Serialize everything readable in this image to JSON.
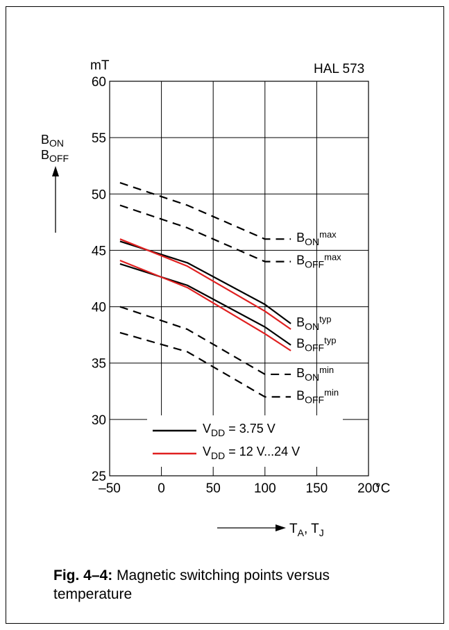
{
  "chart_data": {
    "type": "line",
    "title": "",
    "device_label": "HAL 573",
    "y_unit": "mT",
    "ylim": [
      25,
      60
    ],
    "yticks": [
      "25",
      "30",
      "35",
      "40",
      "45",
      "50",
      "55",
      "60"
    ],
    "xlim": [
      -50,
      200
    ],
    "xticks": [
      "–50",
      "0",
      "50",
      "100",
      "150",
      "200"
    ],
    "x_unit": "°C",
    "y_axis_label": [
      {
        "main": "B",
        "sub": "ON"
      },
      {
        "main": "B",
        "sub": "OFF"
      }
    ],
    "x_axis_label": {
      "a": "T",
      "a_sub": "A",
      "sep": ", ",
      "b": "T",
      "b_sub": "J"
    },
    "grid": true,
    "series": [
      {
        "label_main": "B",
        "label_sub": "ON",
        "label_sup": "max",
        "style": "dashed",
        "color": "#000000",
        "x": [
          -40,
          25,
          100,
          125
        ],
        "y": [
          51,
          49,
          46,
          46
        ]
      },
      {
        "label_main": "B",
        "label_sub": "OFF",
        "label_sup": "max",
        "style": "dashed",
        "color": "#000000",
        "x": [
          -40,
          25,
          100,
          125
        ],
        "y": [
          49,
          47,
          44,
          44
        ]
      },
      {
        "label_main": "B",
        "label_sub": "ON",
        "label_sup": "typ",
        "style": "solid",
        "color": "#000000",
        "x": [
          -40,
          25,
          100,
          125
        ],
        "y": [
          45.8,
          43.9,
          40.2,
          38.5
        ]
      },
      {
        "label_main": "B",
        "label_sub": "OFF",
        "label_sup": "typ",
        "style": "solid",
        "color": "#000000",
        "x": [
          -40,
          25,
          100,
          125
        ],
        "y": [
          43.8,
          41.9,
          38.2,
          36.6
        ]
      },
      {
        "label_main": "",
        "label_sub": "",
        "label_sup": "",
        "style": "solid",
        "color": "#e02020",
        "x": [
          -40,
          25,
          100,
          125
        ],
        "y": [
          46.0,
          43.6,
          39.6,
          38.0
        ]
      },
      {
        "label_main": "",
        "label_sub": "",
        "label_sup": "",
        "style": "solid",
        "color": "#e02020",
        "x": [
          -40,
          25,
          100,
          125
        ],
        "y": [
          44.1,
          41.7,
          37.6,
          36.1
        ]
      },
      {
        "label_main": "B",
        "label_sub": "ON",
        "label_sup": "min",
        "style": "dashed",
        "color": "#000000",
        "x": [
          -40,
          25,
          100,
          125
        ],
        "y": [
          40,
          38,
          34,
          34
        ]
      },
      {
        "label_main": "B",
        "label_sub": "OFF",
        "label_sup": "min",
        "style": "dashed",
        "color": "#000000",
        "x": [
          -40,
          25,
          100,
          125
        ],
        "y": [
          37.7,
          36,
          32,
          32
        ]
      }
    ],
    "legend": [
      {
        "color": "#000000",
        "main": "V",
        "sub": "DD",
        "rest": " = 3.75 V"
      },
      {
        "color": "#e02020",
        "main": "V",
        "sub": "DD",
        "rest": " = 12 V...24 V"
      }
    ]
  },
  "caption": {
    "bold": "Fig. 4–4:",
    "text": " Magnetic switching points versus temperature"
  }
}
